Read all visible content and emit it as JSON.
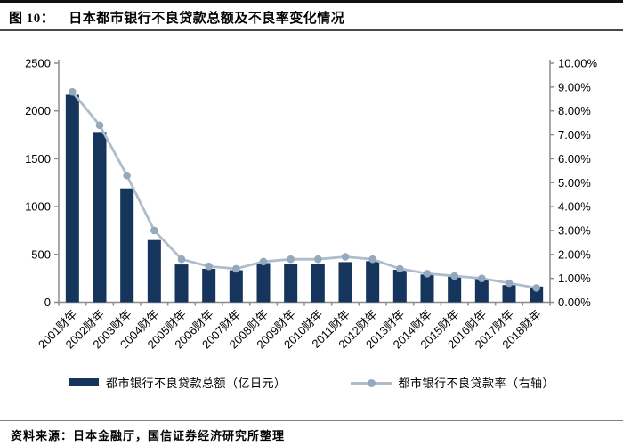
{
  "figure": {
    "label": "图 10：",
    "title": "日本都市银行不良贷款总额及不良率变化情况"
  },
  "legend": {
    "items": [
      {
        "type": "bar",
        "label": "都市银行不良贷款总额（亿日元）"
      },
      {
        "type": "line",
        "label": "都市银行不良贷款率（右轴）"
      }
    ]
  },
  "source": {
    "text": "资料来源：日本金融厅，国信证券经济研究所整理"
  },
  "colors": {
    "bar": "#15355C",
    "line": "#AEBCCB",
    "marker": "#95A9BE",
    "axis": "#8C8C8C",
    "tick_text": "#000000"
  },
  "chart_data": {
    "type": "bar+line combo",
    "title": "日本都市银行不良贷款总额及不良率变化情况",
    "categories": [
      "2001财年",
      "2002财年",
      "2003财年",
      "2004财年",
      "2005财年",
      "2006财年",
      "2007财年",
      "2008财年",
      "2009财年",
      "2010财年",
      "2011财年",
      "2012财年",
      "2013财年",
      "2014财年",
      "2015财年",
      "2016财年",
      "2017财年",
      "2018财年"
    ],
    "series": [
      {
        "name": "都市银行不良贷款总额（亿日元）",
        "type": "bar",
        "axis": "left",
        "values": [
          2170,
          1780,
          1190,
          650,
          395,
          350,
          335,
          410,
          400,
          400,
          420,
          430,
          340,
          290,
          270,
          250,
          180,
          165
        ]
      },
      {
        "name": "都市银行不良贷款率（右轴）",
        "type": "line",
        "axis": "right",
        "values_percent": [
          8.8,
          7.4,
          5.3,
          3.0,
          1.8,
          1.5,
          1.4,
          1.7,
          1.8,
          1.8,
          1.9,
          1.8,
          1.4,
          1.2,
          1.1,
          1.0,
          0.8,
          0.6
        ]
      }
    ],
    "left_axis": {
      "min": 0,
      "max": 2500,
      "step": 500,
      "tick_labels": [
        "0",
        "500",
        "1000",
        "1500",
        "2000",
        "2500"
      ]
    },
    "right_axis": {
      "min": 0,
      "max": 10,
      "step": 1,
      "tick_labels": [
        "0.00%",
        "1.00%",
        "2.00%",
        "3.00%",
        "4.00%",
        "5.00%",
        "6.00%",
        "7.00%",
        "8.00%",
        "9.00%",
        "10.00%"
      ]
    },
    "grid": false,
    "legend_position": "bottom",
    "x_label_rotation_deg": -45
  }
}
